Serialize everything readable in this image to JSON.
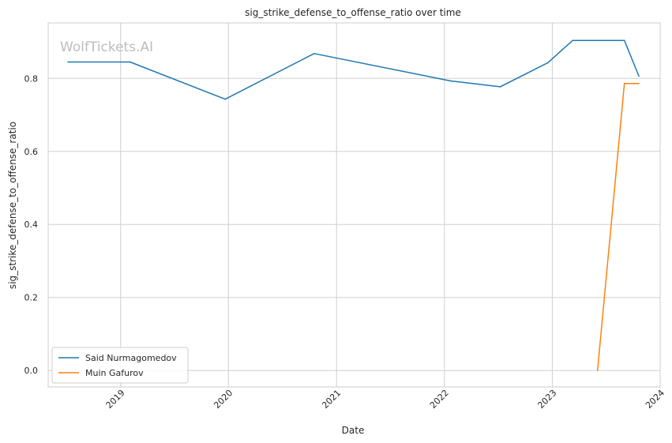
{
  "chart_data": {
    "type": "line",
    "title": "sig_strike_defense_to_offense_ratio over time",
    "xlabel": "Date",
    "ylabel": "sig_strike_defense_to_offense_ratio",
    "watermark": "WolfTickets.AI",
    "x_is_date": true,
    "xlim": [
      "2018-05-01",
      "2024-01-01"
    ],
    "ylim": [
      -0.045,
      0.952
    ],
    "x_ticks": [
      "2019-01-01",
      "2020-01-01",
      "2021-01-01",
      "2022-01-01",
      "2023-01-01",
      "2024-01-01"
    ],
    "x_tick_labels": [
      "2019",
      "2020",
      "2021",
      "2022",
      "2023",
      "2024"
    ],
    "y_ticks": [
      0.0,
      0.2,
      0.4,
      0.6,
      0.8
    ],
    "y_tick_labels": [
      "0.0",
      "0.2",
      "0.4",
      "0.6",
      "0.8"
    ],
    "grid": true,
    "legend_position": "bottom-left",
    "series": [
      {
        "name": "Said Nurmagomedov",
        "color": "#1f77b4",
        "points": [
          {
            "x": "2018-07-07",
            "y": 0.845
          },
          {
            "x": "2019-02-02",
            "y": 0.845
          },
          {
            "x": "2019-12-21",
            "y": 0.743
          },
          {
            "x": "2020-10-17",
            "y": 0.868
          },
          {
            "x": "2022-01-22",
            "y": 0.793
          },
          {
            "x": "2022-07-09",
            "y": 0.777
          },
          {
            "x": "2022-12-17",
            "y": 0.843
          },
          {
            "x": "2023-03-11",
            "y": 0.904
          },
          {
            "x": "2023-09-02",
            "y": 0.904
          },
          {
            "x": "2023-10-21",
            "y": 0.806
          }
        ]
      },
      {
        "name": "Muin Gafurov",
        "color": "#ff7f0e",
        "points": [
          {
            "x": "2023-06-03",
            "y": 0.0
          },
          {
            "x": "2023-09-02",
            "y": 0.786
          },
          {
            "x": "2023-10-21",
            "y": 0.786
          }
        ]
      }
    ]
  }
}
